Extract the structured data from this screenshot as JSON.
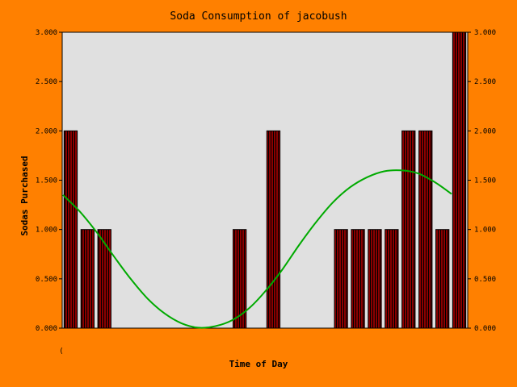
{
  "chart_data": {
    "type": "bar",
    "title": "Soda Consumption of jacobush",
    "xlabel": "Time of Day",
    "ylabel": "Sodas Purchased",
    "x_tick_label": "(",
    "ylim": [
      0,
      3
    ],
    "y_ticks": [
      "0.000",
      "0.500",
      "1.000",
      "1.500",
      "2.000",
      "2.500",
      "3.000"
    ],
    "grid": false,
    "legend": "none",
    "slots": 24,
    "bars": [
      {
        "slot": 0,
        "value": 2
      },
      {
        "slot": 1,
        "value": 1
      },
      {
        "slot": 2,
        "value": 1
      },
      {
        "slot": 10,
        "value": 1
      },
      {
        "slot": 12,
        "value": 2
      },
      {
        "slot": 16,
        "value": 1
      },
      {
        "slot": 17,
        "value": 1
      },
      {
        "slot": 18,
        "value": 1
      },
      {
        "slot": 19,
        "value": 1
      },
      {
        "slot": 20,
        "value": 2
      },
      {
        "slot": 21,
        "value": 2
      },
      {
        "slot": 22,
        "value": 1
      },
      {
        "slot": 23,
        "value": 3
      }
    ],
    "trend_curve": [
      {
        "x": 0,
        "y": 1.35
      },
      {
        "x": 1,
        "y": 1.18
      },
      {
        "x": 2,
        "y": 0.97
      },
      {
        "x": 3,
        "y": 0.73
      },
      {
        "x": 4,
        "y": 0.5
      },
      {
        "x": 5,
        "y": 0.3
      },
      {
        "x": 6,
        "y": 0.15
      },
      {
        "x": 7,
        "y": 0.05
      },
      {
        "x": 8,
        "y": 0.005
      },
      {
        "x": 9,
        "y": 0.02
      },
      {
        "x": 10,
        "y": 0.08
      },
      {
        "x": 11,
        "y": 0.2
      },
      {
        "x": 12,
        "y": 0.38
      },
      {
        "x": 13,
        "y": 0.6
      },
      {
        "x": 14,
        "y": 0.85
      },
      {
        "x": 15,
        "y": 1.08
      },
      {
        "x": 16,
        "y": 1.28
      },
      {
        "x": 17,
        "y": 1.43
      },
      {
        "x": 18,
        "y": 1.53
      },
      {
        "x": 19,
        "y": 1.59
      },
      {
        "x": 20,
        "y": 1.6
      },
      {
        "x": 21,
        "y": 1.57
      },
      {
        "x": 22,
        "y": 1.48
      },
      {
        "x": 23,
        "y": 1.36
      }
    ],
    "colors": {
      "background": "#ff8000",
      "plot_area": "#e0e0e0",
      "bar_fill": "#8b0000",
      "bar_stripe": "#000000",
      "curve": "#00aa00",
      "axis_text": "#000000",
      "title_text": "#000000"
    }
  }
}
